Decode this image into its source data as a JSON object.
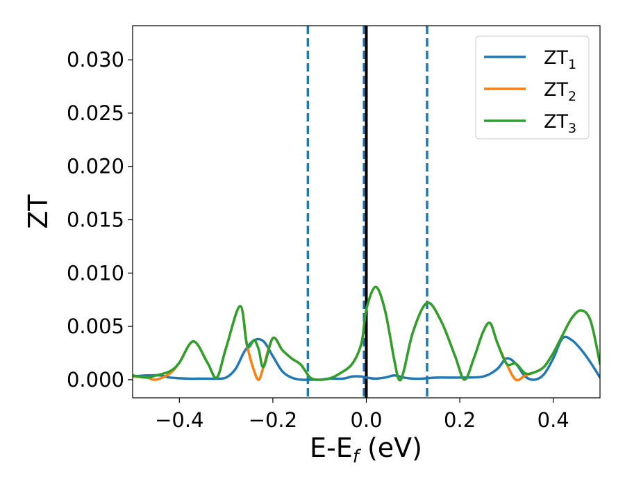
{
  "chart_data": {
    "type": "line",
    "xlabel": {
      "main": "E-E",
      "sub": "f",
      "suffix": " (eV)"
    },
    "ylabel": "ZT",
    "xlim": [
      -0.5,
      0.5
    ],
    "ylim": [
      -0.0017,
      0.0332
    ],
    "x_ticks": [
      -0.4,
      -0.2,
      0.0,
      0.2,
      0.4
    ],
    "x_tick_labels": [
      "−0.4",
      "−0.2",
      "0.0",
      "0.2",
      "0.4"
    ],
    "y_ticks": [
      0.0,
      0.005,
      0.01,
      0.015,
      0.02,
      0.025,
      0.03
    ],
    "y_tick_labels": [
      "0.000",
      "0.005",
      "0.010",
      "0.015",
      "0.020",
      "0.025",
      "0.030"
    ],
    "grid": false,
    "legend_position": "top-right",
    "vlines": [
      {
        "x": -0.125,
        "style": "dashed",
        "color": "#1f77b4"
      },
      {
        "x": -0.005,
        "style": "dashed",
        "color": "#1f77b4"
      },
      {
        "x": 0.13,
        "style": "dashed",
        "color": "#1f77b4"
      },
      {
        "x": 0.0,
        "style": "solid",
        "color": "#000000"
      }
    ],
    "series": [
      {
        "name": "ZT",
        "sub": "1",
        "color": "#1f77b4",
        "x": [
          -0.5,
          -0.47,
          -0.44,
          -0.42,
          -0.38,
          -0.35,
          -0.32,
          -0.3,
          -0.28,
          -0.26,
          -0.24,
          -0.22,
          -0.2,
          -0.18,
          -0.16,
          -0.14,
          -0.12,
          -0.1,
          -0.08,
          -0.05,
          -0.03,
          -0.01,
          0.0,
          0.02,
          0.04,
          0.06,
          0.08,
          0.1,
          0.12,
          0.15,
          0.2,
          0.25,
          0.28,
          0.3,
          0.32,
          0.34,
          0.36,
          0.38,
          0.4,
          0.42,
          0.44,
          0.46,
          0.48,
          0.5
        ],
        "y": [
          0.0003,
          0.0004,
          0.0004,
          0.0002,
          0.0001,
          0.0001,
          0.0001,
          0.0002,
          0.001,
          0.0027,
          0.0037,
          0.0036,
          0.0022,
          0.0008,
          0.0002,
          0.0,
          0.0,
          0.0,
          0.0001,
          0.0001,
          0.0003,
          0.0003,
          0.0002,
          0.0001,
          0.0002,
          0.0004,
          0.0002,
          0.0001,
          0.0001,
          0.0002,
          0.0002,
          0.0003,
          0.001,
          0.002,
          0.0015,
          0.0003,
          0.0,
          0.0005,
          0.002,
          0.0039,
          0.0037,
          0.0028,
          0.0016,
          0.0002
        ]
      },
      {
        "name": "ZT",
        "sub": "2",
        "color": "#ff7f0e",
        "x": [
          -0.5,
          -0.47,
          -0.45,
          -0.42,
          -0.4,
          -0.37,
          -0.34,
          -0.32,
          -0.3,
          -0.27,
          -0.255,
          -0.24,
          -0.23,
          -0.22,
          -0.2,
          -0.18,
          -0.16,
          -0.14,
          -0.12,
          -0.1,
          -0.08,
          -0.06,
          -0.03,
          -0.01,
          0.0,
          0.02,
          0.04,
          0.06,
          0.07,
          0.08,
          0.1,
          0.13,
          0.16,
          0.19,
          0.21,
          0.23,
          0.25,
          0.265,
          0.28,
          0.3,
          0.32,
          0.34,
          0.36,
          0.38,
          0.4,
          0.42,
          0.44,
          0.46,
          0.48,
          0.5
        ],
        "y": [
          0.0003,
          0.0002,
          0.0,
          0.0006,
          0.0016,
          0.0036,
          0.0016,
          0.0002,
          0.003,
          0.0069,
          0.0032,
          0.0008,
          0.0,
          0.0012,
          0.0039,
          0.0028,
          0.002,
          0.0014,
          0.0002,
          0.0,
          0.0001,
          0.0005,
          0.0015,
          0.0035,
          0.0066,
          0.0087,
          0.0065,
          0.0018,
          0.0,
          0.0008,
          0.0045,
          0.0072,
          0.0055,
          0.0022,
          0.0,
          0.002,
          0.0045,
          0.0053,
          0.0035,
          0.0015,
          0.0,
          0.0004,
          0.0007,
          0.0012,
          0.0025,
          0.0042,
          0.0058,
          0.0065,
          0.0055,
          0.0015
        ]
      },
      {
        "name": "ZT",
        "sub": "3",
        "color": "#2ca02c",
        "x": [
          -0.5,
          -0.47,
          -0.45,
          -0.42,
          -0.4,
          -0.37,
          -0.34,
          -0.32,
          -0.3,
          -0.27,
          -0.255,
          -0.24,
          -0.23,
          -0.22,
          -0.2,
          -0.18,
          -0.16,
          -0.14,
          -0.12,
          -0.1,
          -0.08,
          -0.06,
          -0.03,
          -0.01,
          0.0,
          0.02,
          0.04,
          0.06,
          0.07,
          0.08,
          0.1,
          0.13,
          0.16,
          0.19,
          0.21,
          0.23,
          0.25,
          0.265,
          0.28,
          0.3,
          0.32,
          0.34,
          0.36,
          0.38,
          0.4,
          0.42,
          0.44,
          0.46,
          0.48,
          0.5
        ],
        "y": [
          0.0004,
          0.0002,
          0.0004,
          0.0008,
          0.0016,
          0.0036,
          0.0016,
          0.0002,
          0.003,
          0.0069,
          0.0032,
          0.0037,
          0.0028,
          0.0012,
          0.0039,
          0.0028,
          0.002,
          0.0014,
          0.0002,
          0.0,
          0.0001,
          0.0005,
          0.0015,
          0.0035,
          0.0066,
          0.0087,
          0.0065,
          0.0018,
          0.0,
          0.0008,
          0.0045,
          0.0072,
          0.0055,
          0.0022,
          0.0,
          0.002,
          0.0045,
          0.0053,
          0.0035,
          0.0015,
          0.0015,
          0.0006,
          0.0007,
          0.0012,
          0.0025,
          0.0042,
          0.0058,
          0.0065,
          0.0055,
          0.0015
        ]
      }
    ]
  }
}
